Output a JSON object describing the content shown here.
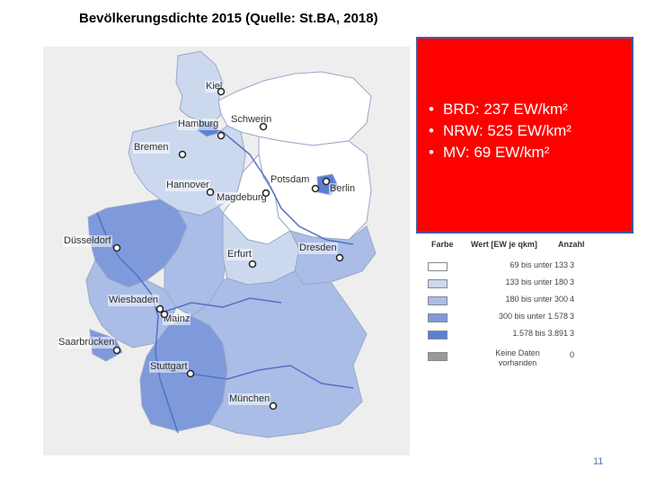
{
  "slide": {
    "title": "Bevölkerungsdichte 2015 (Quelle: St.BA, 2018)",
    "page_number": "11"
  },
  "info_box": {
    "background": "#ff0000",
    "bullets": [
      "BRD: 237 EW/km²",
      "NRW: 525 EW/km²",
      "MV: 69 EW/km²"
    ]
  },
  "legend": {
    "headers": [
      "Farbe",
      "Wert [EW je qkm]",
      "Anzahl"
    ],
    "rows": [
      {
        "color": "#ffffff",
        "range": "69 bis unter 133",
        "count": "3"
      },
      {
        "color": "#ccd8ee",
        "range": "133 bis unter 180",
        "count": "3"
      },
      {
        "color": "#a9bde6",
        "range": "180 bis unter 300",
        "count": "4"
      },
      {
        "color": "#7f9ada",
        "range": "300 bis unter 1.578",
        "count": "3"
      },
      {
        "color": "#5a80d6",
        "range": "1.578 bis 3.891",
        "count": "3"
      },
      {
        "color": "#999999",
        "range": "Keine Daten vorhanden",
        "count": "0"
      }
    ]
  },
  "map": {
    "states": [
      {
        "name": "Schleswig-Holstein",
        "class": "133 bis unter 180"
      },
      {
        "name": "Hamburg",
        "class": "1.578 bis 3.891"
      },
      {
        "name": "Mecklenburg-Vorpommern",
        "class": "69 bis unter 133"
      },
      {
        "name": "Bremen",
        "class": "1.578 bis 3.891"
      },
      {
        "name": "Niedersachsen",
        "class": "133 bis unter 180"
      },
      {
        "name": "Brandenburg",
        "class": "69 bis unter 133"
      },
      {
        "name": "Berlin",
        "class": "1.578 bis 3.891"
      },
      {
        "name": "Sachsen-Anhalt",
        "class": "69 bis unter 133"
      },
      {
        "name": "Nordrhein-Westfalen",
        "class": "300 bis unter 1.578"
      },
      {
        "name": "Hessen",
        "class": "180 bis unter 300"
      },
      {
        "name": "Thüringen",
        "class": "133 bis unter 180"
      },
      {
        "name": "Sachsen",
        "class": "180 bis unter 300"
      },
      {
        "name": "Rheinland-Pfalz",
        "class": "180 bis unter 300"
      },
      {
        "name": "Saarland",
        "class": "300 bis unter 1.578"
      },
      {
        "name": "Bayern",
        "class": "180 bis unter 300"
      },
      {
        "name": "Baden-Württemberg",
        "class": "300 bis unter 1.578"
      }
    ],
    "cities": [
      "Kiel",
      "Schwerin",
      "Hamburg",
      "Bremen",
      "Potsdam",
      "Berlin",
      "Hannover",
      "Magdeburg",
      "Düsseldorf",
      "Erfurt",
      "Dresden",
      "Wiesbaden",
      "Mainz",
      "Saarbrücken",
      "Stuttgart",
      "München"
    ]
  }
}
